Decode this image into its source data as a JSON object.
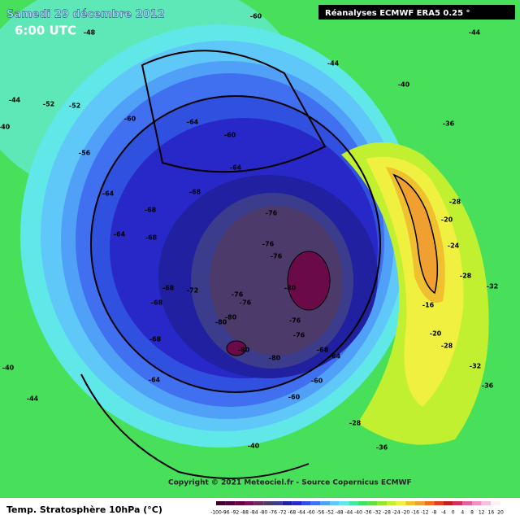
{
  "header": {
    "title": "Samedi 29 décembre 2012",
    "time": "6:00 UTC",
    "source": "Réanalyses ECMWF ERA5 0.25 °"
  },
  "map": {
    "contour_labels": [
      "-60",
      "-48",
      "-44",
      "-52",
      "-52",
      "-60",
      "-64",
      "-56",
      "-60",
      "-64",
      "-64",
      "-68",
      "-68",
      "-64",
      "-68",
      "-76",
      "-76",
      "-76",
      "-72",
      "-68",
      "-68",
      "-76",
      "-76",
      "-80",
      "-80",
      "-80",
      "-68",
      "-80",
      "-80",
      "-76",
      "-76",
      "-68",
      "-64",
      "-60",
      "-64",
      "-60",
      "-40",
      "-36",
      "-28",
      "-20",
      "-24",
      "-28",
      "-32",
      "-16",
      "-20",
      "-28",
      "-32",
      "-36",
      "-28",
      "-36",
      "-40",
      "-44",
      "-40",
      "-44",
      "-40",
      "-44"
    ]
  },
  "footer": {
    "copyright": "Copyright © 2021 Meteociel.fr - Source Copernicus ECMWF",
    "field": "Temp. Stratosphère 10hPa (°C)",
    "scale_labels": [
      "-100",
      "-96",
      "-92",
      "-88",
      "-84",
      "-80",
      "-76",
      "-72",
      "-68",
      "-64",
      "-60",
      "-56",
      "-52",
      "-48",
      "-44",
      "-40",
      "-36",
      "-32",
      "-28",
      "-24",
      "-20",
      "-16",
      "-12",
      "-8",
      "-4",
      "0",
      "4",
      "8",
      "12",
      "16",
      "20"
    ],
    "scale_colors": [
      "#3a0028",
      "#500038",
      "#680048",
      "#7a1058",
      "#6a2a5a",
      "#4c3a6a",
      "#3c3c8c",
      "#2020a0",
      "#2828c8",
      "#3050e0",
      "#4070f0",
      "#50a0f8",
      "#60c8f8",
      "#60e8e8",
      "#40e8a0",
      "#40e060",
      "#60e040",
      "#90e830",
      "#c0f030",
      "#f0f040",
      "#f0c030",
      "#f0a030",
      "#f07020",
      "#e04020",
      "#c02020",
      "#d03060",
      "#e060a0",
      "#f090c0",
      "#f8c0e0",
      "#fff0f8"
    ]
  }
}
